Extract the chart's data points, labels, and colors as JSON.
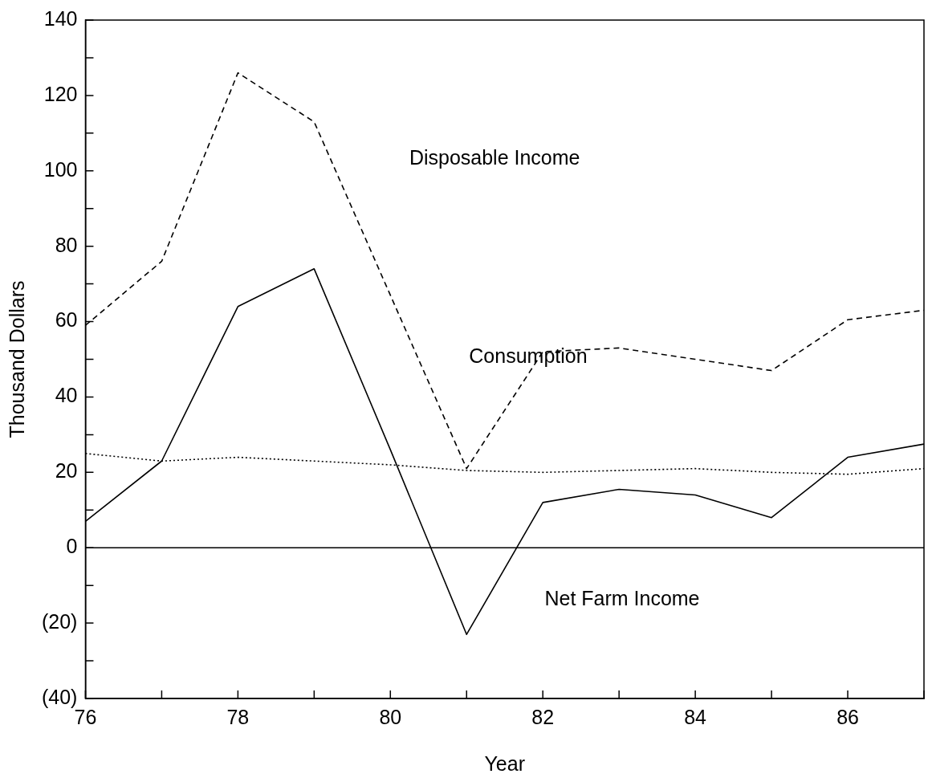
{
  "chart_data": {
    "type": "line",
    "xlabel": "Year",
    "ylabel": "Thousand Dollars",
    "x": [
      76,
      77,
      78,
      79,
      80,
      81,
      82,
      83,
      84,
      85,
      86,
      87
    ],
    "series": [
      {
        "color": "#000000",
        "line_style": "dashed",
        "values": [
          59,
          76,
          126,
          113,
          67,
          21,
          52,
          53,
          50,
          47,
          60.5,
          63
        ]
      },
      {
        "color": "#000000",
        "line_style": "dotted",
        "values": [
          25,
          23,
          24,
          23,
          22,
          20.5,
          20,
          20.5,
          21,
          20,
          19.5,
          21
        ]
      },
      {
        "color": "#000000",
        "line_style": "solid",
        "values": [
          7,
          23,
          64,
          74,
          26,
          -23,
          12,
          15.5,
          14,
          8,
          24,
          27.5
        ]
      }
    ],
    "xlim": [
      76,
      87
    ],
    "xticks": [
      76,
      {
        "value": 77,
        "label": null
      },
      78,
      {
        "value": 79,
        "label": null
      },
      80,
      {
        "value": 81,
        "label": null
      },
      82,
      {
        "value": 83,
        "label": null
      },
      84,
      {
        "value": 85,
        "label": null
      },
      86,
      {
        "value": 87,
        "label": null
      }
    ],
    "ylim": [
      -40,
      140
    ],
    "yticks": [
      {
        "value": -40,
        "label": "(40)"
      },
      {
        "value": -30,
        "label": null
      },
      {
        "value": -20,
        "label": "(20)"
      },
      {
        "value": -10,
        "label": null
      },
      0,
      {
        "value": 10,
        "label": null
      },
      20,
      {
        "value": 30,
        "label": null
      },
      40,
      {
        "value": 50,
        "label": null
      },
      60,
      {
        "value": 70,
        "label": null
      },
      80,
      {
        "value": 90,
        "label": null
      },
      100,
      {
        "value": 110,
        "label": null
      },
      120,
      {
        "value": 130,
        "label": null
      },
      140
    ],
    "ref_lines": [
      {
        "axis": "y",
        "value": 0,
        "color": "#000000"
      }
    ],
    "annotations": [
      "Disposable Income",
      "Consumption",
      "Net Farm Income"
    ],
    "grid": false,
    "legend": false,
    "marker": "none"
  }
}
